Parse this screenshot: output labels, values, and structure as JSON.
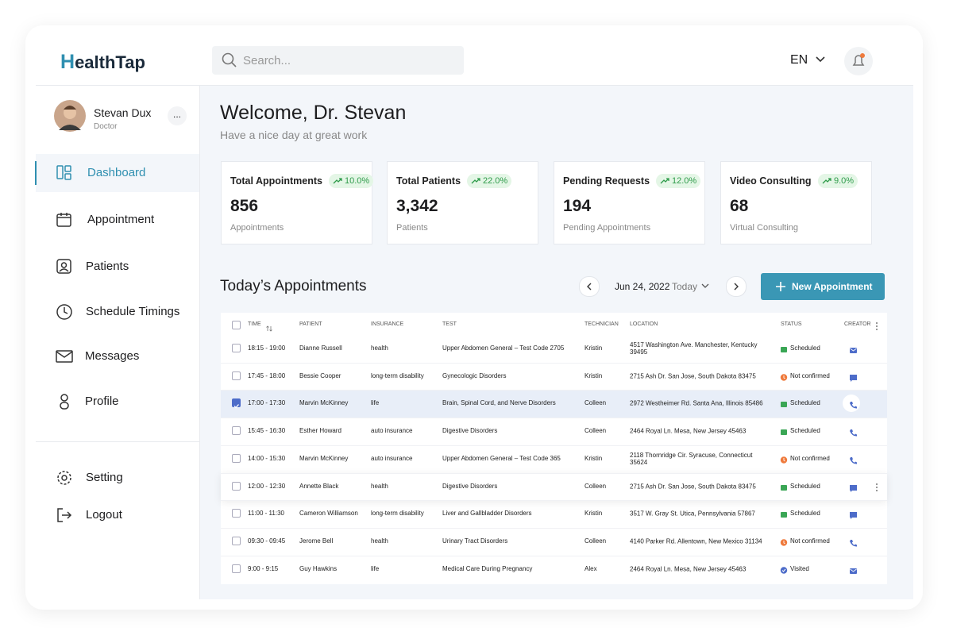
{
  "header": {
    "logo": "HealthTap",
    "search_placeholder": "Search...",
    "language": "EN"
  },
  "user": {
    "name": "Stevan Dux",
    "role": "Doctor",
    "menu": "..."
  },
  "nav": {
    "main": [
      "Dashboard",
      "Appointment",
      "Patients",
      "Schedule Timings",
      "Messages",
      "Profile"
    ],
    "bottom": [
      "Setting",
      "Logout"
    ]
  },
  "welcome": {
    "title": "Welcome, Dr. Stevan",
    "subtitle": "Have a nice day at great work"
  },
  "stats": [
    {
      "title": "Total Appointments",
      "change": "10.0%",
      "value": "856",
      "caption": "Appointments"
    },
    {
      "title": "Total Patients",
      "change": "22.0%",
      "value": "3,342",
      "caption": "Patients"
    },
    {
      "title": "Pending Requests",
      "change": "12.0%",
      "value": "194",
      "caption": "Pending Appointments"
    },
    {
      "title": "Video Consulting",
      "change": "9.0%",
      "value": "68",
      "caption": "Virtual Consulting"
    }
  ],
  "appointments": {
    "title": "Today’s Appointments",
    "date": "Jun 24, 2022",
    "today": "Today",
    "button": "New Appointment",
    "columns": [
      "TIME",
      "PATIENT",
      "INSURANCE",
      "TEST",
      "TECHNICIAN",
      "LOCATION",
      "STATUS",
      "CREATOR"
    ],
    "rows": [
      [
        "18:15 - 19:00",
        "Dianne Russell",
        "health",
        "Upper Abdomen General – Test Code 2705",
        "Kristin",
        "4517 Washington Ave. Manchester, Kentucky 39495",
        "Scheduled"
      ],
      [
        "17:45 - 18:00",
        "Bessie Cooper",
        "long-term disability",
        "Gynecologic Disorders",
        "Kristin",
        "2715 Ash Dr. San Jose, South Dakota 83475",
        "Not confirmed"
      ],
      [
        "17:00 - 17:30",
        "Marvin McKinney",
        "life",
        "Brain, Spinal Cord, and Nerve Disorders",
        "Colleen",
        "2972 Westheimer Rd. Santa Ana, Illinois 85486",
        "Scheduled"
      ],
      [
        "15:45 - 16:30",
        "Esther Howard",
        "auto insurance",
        "Digestive Disorders",
        "Colleen",
        "2464 Royal Ln. Mesa, New Jersey 45463",
        "Scheduled"
      ],
      [
        "14:00 - 15:30",
        "Marvin McKinney",
        "auto insurance",
        "Upper Abdomen General – Test Code 365",
        "Kristin",
        "2118 Thornridge Cir. Syracuse, Connecticut 35624",
        "Not confirmed"
      ],
      [
        "12:00 - 12:30",
        "Annette Black",
        "health",
        "Digestive Disorders",
        "Colleen",
        "2715 Ash Dr. San Jose, South Dakota 83475",
        "Scheduled"
      ],
      [
        "11:00 - 11:30",
        "Cameron Williamson",
        "long-term disability",
        "Liver and Gallbladder Disorders",
        "Kristin",
        "3517 W. Gray St. Utica, Pennsylvania 57867",
        "Scheduled"
      ],
      [
        "09:30 - 09:45",
        "Jerome Bell",
        "health",
        "Urinary Tract Disorders",
        "Colleen",
        "4140 Parker Rd. Allentown, New Mexico 31134",
        "Not confirmed"
      ],
      [
        "9:00 - 9:15",
        "Guy Hawkins",
        "life",
        "Medical Care During Pregnancy",
        "Alex",
        "2464 Royal Ln. Mesa, New Jersey 45463",
        "Visited"
      ]
    ]
  }
}
